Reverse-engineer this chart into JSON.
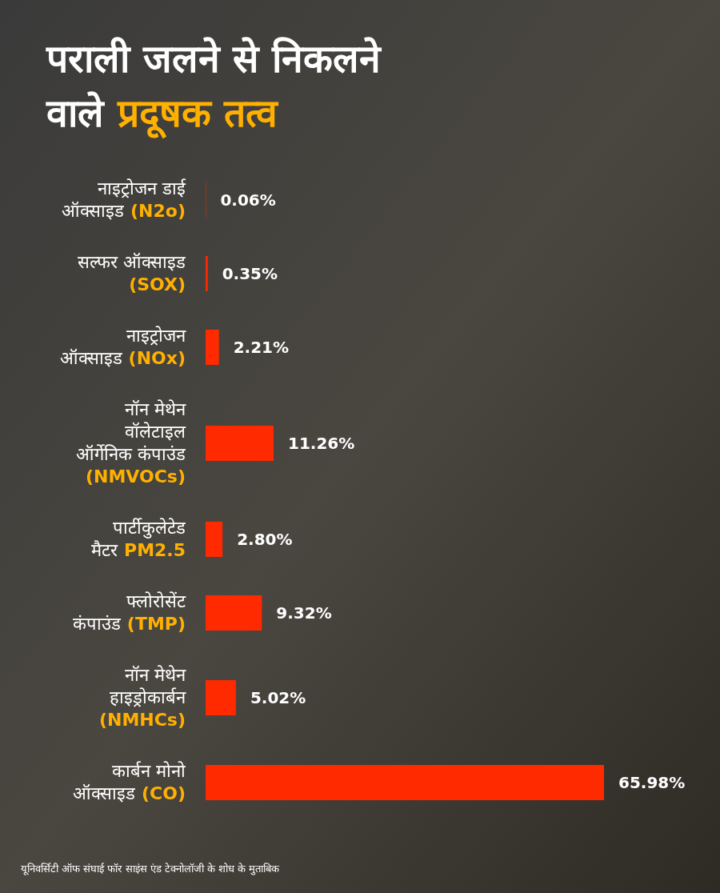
{
  "chart_data": {
    "type": "bar",
    "orientation": "horizontal",
    "title": "पराली जलने से निकलने वाले प्रदूषक तत्व",
    "categories": [
      "नाइट्रोजन डाई ऑक्साइड (N2o)",
      "सल्फर ऑक्साइड (SOX)",
      "नाइट्रोजन ऑक्साइड (NOx)",
      "नॉन मेथेन वॉलेटाइल ऑर्गेनिक कंपाउंड (NMVOCs)",
      "पार्टीकुलेटेड मैटर PM2.5",
      "फ्लोरोसेंट कंपाउंड (TMP)",
      "नॉन मेथेन हाइड्रोकार्बन (NMHCs)",
      "कार्बन मोनो ऑक्साइड (CO)"
    ],
    "values": [
      0.06,
      0.35,
      2.21,
      11.26,
      2.8,
      9.32,
      5.02,
      65.98
    ],
    "value_labels": [
      "0.06%",
      "0.35%",
      "2.21%",
      "11.26%",
      "2.80%",
      "9.32%",
      "5.02%",
      "65.98%"
    ],
    "color": "#ff2a00",
    "annotations": [
      "यूनिवर्सिटी ऑफ संघाई फॉर साइंस एंड टेक्नोलॉजी के शोध के मुताबिक"
    ]
  }
}
